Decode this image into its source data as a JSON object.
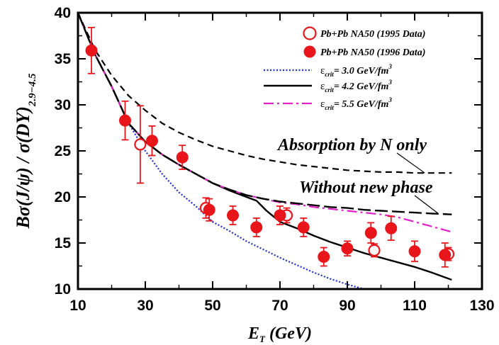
{
  "chart_data": {
    "type": "scatter",
    "xlabel": "E_T (GeV)",
    "ylabel": "Bσ(J/ψ) / σ(DY)_{2.9-4.5}",
    "xlim": [
      10,
      130
    ],
    "ylim": [
      10,
      40
    ],
    "x_ticks": [
      "10",
      "30",
      "50",
      "70",
      "90",
      "110",
      "130"
    ],
    "y_ticks": [
      "10",
      "15",
      "20",
      "25",
      "30",
      "35",
      "40"
    ],
    "legend_position": "top-right",
    "colors": {
      "data": "#e8161b",
      "blue": "#1f2fd6",
      "black": "#000000",
      "magenta": "#e020c8"
    },
    "series": [
      {
        "name": "Pb+Pb  NA50 (1995 Data)",
        "kind": "open-circle",
        "points": [
          {
            "x": 28.5,
            "y": 25.7,
            "err": 4.2
          },
          {
            "x": 48,
            "y": 18.8,
            "err": 1.1
          },
          {
            "x": 72,
            "y": 18.0,
            "err": 0.8
          },
          {
            "x": 98,
            "y": 14.2,
            "err": 0.7
          },
          {
            "x": 120,
            "y": 13.8,
            "err": 0.7
          }
        ]
      },
      {
        "name": "Pb+Pb  NA50 (1996 Data)",
        "kind": "filled-circle",
        "points": [
          {
            "x": 14,
            "y": 35.9,
            "err": 2.5
          },
          {
            "x": 24,
            "y": 28.3,
            "err": 2.1
          },
          {
            "x": 32,
            "y": 26.1,
            "err": 1.6
          },
          {
            "x": 41,
            "y": 24.3,
            "err": 1.3
          },
          {
            "x": 49,
            "y": 18.6,
            "err": 1.2
          },
          {
            "x": 56,
            "y": 18.0,
            "err": 1.0
          },
          {
            "x": 63,
            "y": 16.7,
            "err": 1.0
          },
          {
            "x": 70,
            "y": 18.0,
            "err": 1.0
          },
          {
            "x": 77,
            "y": 16.7,
            "err": 1.0
          },
          {
            "x": 83,
            "y": 13.5,
            "err": 1.0
          },
          {
            "x": 90,
            "y": 14.4,
            "err": 0.8
          },
          {
            "x": 97,
            "y": 16.1,
            "err": 1.1
          },
          {
            "x": 103,
            "y": 16.6,
            "err": 1.3
          },
          {
            "x": 110,
            "y": 14.1,
            "err": 1.1
          },
          {
            "x": 119,
            "y": 13.7,
            "err": 1.3
          }
        ]
      },
      {
        "name": "ε_crit= 3.0 GeV/fm³",
        "kind": "dotted-line",
        "points": [
          {
            "x": 10,
            "y": 40
          },
          {
            "x": 15,
            "y": 35.5
          },
          {
            "x": 20,
            "y": 32.0
          },
          {
            "x": 25,
            "y": 28.0
          },
          {
            "x": 30,
            "y": 25.0
          },
          {
            "x": 35,
            "y": 22.5
          },
          {
            "x": 40,
            "y": 20.5
          },
          {
            "x": 45,
            "y": 19.0
          },
          {
            "x": 50,
            "y": 17.3
          },
          {
            "x": 55,
            "y": 16.3
          },
          {
            "x": 60,
            "y": 15.2
          },
          {
            "x": 65,
            "y": 14.3
          },
          {
            "x": 70,
            "y": 13.4
          },
          {
            "x": 75,
            "y": 12.6
          },
          {
            "x": 80,
            "y": 11.8
          },
          {
            "x": 85,
            "y": 11.1
          },
          {
            "x": 90,
            "y": 10.5
          },
          {
            "x": 94,
            "y": 10.1
          },
          {
            "x": 97,
            "y": 9.9
          }
        ]
      },
      {
        "name": "ε_crit= 4.2 GeV/fm³",
        "kind": "solid-line",
        "points": [
          {
            "x": 10,
            "y": 40
          },
          {
            "x": 15,
            "y": 35.5
          },
          {
            "x": 20,
            "y": 32.0
          },
          {
            "x": 25,
            "y": 28.0
          },
          {
            "x": 30,
            "y": 26.0
          },
          {
            "x": 35,
            "y": 24.6
          },
          {
            "x": 40,
            "y": 23.5
          },
          {
            "x": 45,
            "y": 22.5
          },
          {
            "x": 50,
            "y": 21.5
          },
          {
            "x": 55,
            "y": 20.7
          },
          {
            "x": 60,
            "y": 20.0
          },
          {
            "x": 63,
            "y": 19.6
          },
          {
            "x": 66,
            "y": 18.5
          },
          {
            "x": 70,
            "y": 17.3
          },
          {
            "x": 75,
            "y": 16.6
          },
          {
            "x": 80,
            "y": 15.8
          },
          {
            "x": 85,
            "y": 15.1
          },
          {
            "x": 90,
            "y": 14.5
          },
          {
            "x": 95,
            "y": 13.9
          },
          {
            "x": 100,
            "y": 13.4
          },
          {
            "x": 105,
            "y": 12.9
          },
          {
            "x": 110,
            "y": 12.4
          },
          {
            "x": 115,
            "y": 11.8
          },
          {
            "x": 121,
            "y": 11.0
          }
        ]
      },
      {
        "name": "ε_crit= 5.5 GeV/fm³",
        "kind": "dashdot-line",
        "points": [
          {
            "x": 10,
            "y": 40
          },
          {
            "x": 15,
            "y": 35.5
          },
          {
            "x": 20,
            "y": 32.0
          },
          {
            "x": 25,
            "y": 28.0
          },
          {
            "x": 30,
            "y": 26.0
          },
          {
            "x": 35,
            "y": 24.6
          },
          {
            "x": 40,
            "y": 23.5
          },
          {
            "x": 45,
            "y": 22.5
          },
          {
            "x": 50,
            "y": 21.5
          },
          {
            "x": 55,
            "y": 20.8
          },
          {
            "x": 60,
            "y": 20.2
          },
          {
            "x": 65,
            "y": 19.8
          },
          {
            "x": 70,
            "y": 19.4
          },
          {
            "x": 75,
            "y": 19.2
          },
          {
            "x": 80,
            "y": 18.9
          },
          {
            "x": 85,
            "y": 18.7
          },
          {
            "x": 90,
            "y": 18.5
          },
          {
            "x": 95,
            "y": 18.3
          },
          {
            "x": 100,
            "y": 18.1
          },
          {
            "x": 105,
            "y": 17.8
          },
          {
            "x": 110,
            "y": 17.3
          },
          {
            "x": 115,
            "y": 16.8
          },
          {
            "x": 121,
            "y": 16.2
          }
        ]
      },
      {
        "name": "Without new phase",
        "kind": "long-dash-line",
        "points": [
          {
            "x": 10,
            "y": 40
          },
          {
            "x": 15,
            "y": 35.5
          },
          {
            "x": 20,
            "y": 32.0
          },
          {
            "x": 25,
            "y": 28.0
          },
          {
            "x": 30,
            "y": 26.0
          },
          {
            "x": 35,
            "y": 24.6
          },
          {
            "x": 40,
            "y": 23.5
          },
          {
            "x": 45,
            "y": 22.5
          },
          {
            "x": 50,
            "y": 21.5
          },
          {
            "x": 55,
            "y": 20.8
          },
          {
            "x": 60,
            "y": 20.2
          },
          {
            "x": 65,
            "y": 19.8
          },
          {
            "x": 70,
            "y": 19.5
          },
          {
            "x": 75,
            "y": 19.3
          },
          {
            "x": 80,
            "y": 19.1
          },
          {
            "x": 85,
            "y": 18.9
          },
          {
            "x": 90,
            "y": 18.8
          },
          {
            "x": 95,
            "y": 18.6
          },
          {
            "x": 100,
            "y": 18.5
          },
          {
            "x": 105,
            "y": 18.4
          },
          {
            "x": 110,
            "y": 18.3
          },
          {
            "x": 115,
            "y": 18.2
          },
          {
            "x": 121,
            "y": 18.1
          }
        ]
      },
      {
        "name": "Absorption by N only",
        "kind": "dashed-line",
        "points": [
          {
            "x": 10,
            "y": 40
          },
          {
            "x": 15,
            "y": 36.0
          },
          {
            "x": 20,
            "y": 33.2
          },
          {
            "x": 25,
            "y": 31.0
          },
          {
            "x": 30,
            "y": 29.4
          },
          {
            "x": 35,
            "y": 28.0
          },
          {
            "x": 40,
            "y": 27.0
          },
          {
            "x": 45,
            "y": 26.2
          },
          {
            "x": 50,
            "y": 25.5
          },
          {
            "x": 55,
            "y": 25.0
          },
          {
            "x": 60,
            "y": 24.5
          },
          {
            "x": 65,
            "y": 24.1
          },
          {
            "x": 70,
            "y": 23.8
          },
          {
            "x": 75,
            "y": 23.5
          },
          {
            "x": 80,
            "y": 23.3
          },
          {
            "x": 85,
            "y": 23.1
          },
          {
            "x": 90,
            "y": 22.9
          },
          {
            "x": 95,
            "y": 22.8
          },
          {
            "x": 100,
            "y": 22.7
          },
          {
            "x": 105,
            "y": 22.7
          },
          {
            "x": 110,
            "y": 22.6
          },
          {
            "x": 115,
            "y": 22.6
          },
          {
            "x": 121,
            "y": 22.6
          }
        ]
      }
    ],
    "annotations": [
      {
        "text": "Absorption by N only",
        "points_to": {
          "x": 113,
          "y": 22.6
        }
      },
      {
        "text": "Without new phase",
        "points_to": {
          "x": 117,
          "y": 18.2
        }
      }
    ],
    "legend": [
      {
        "text": "Pb+Pb  NA50 (1995 Data)",
        "marker": "open-circle"
      },
      {
        "text": "Pb+Pb  NA50 (1996 Data)",
        "marker": "filled-circle"
      },
      {
        "text_main": "ε",
        "text_sub": "crit",
        "text_rest": "= 3.0 GeV/fm",
        "text_sup": "3",
        "marker": "dotted-line"
      },
      {
        "text_main": "ε",
        "text_sub": "crit",
        "text_rest": "= 4.2 GeV/fm",
        "text_sup": "3",
        "marker": "solid-line"
      },
      {
        "text_main": "ε",
        "text_sub": "crit",
        "text_rest": "= 5.5 GeV/fm",
        "text_sup": "3",
        "marker": "dashdot-line"
      }
    ]
  }
}
